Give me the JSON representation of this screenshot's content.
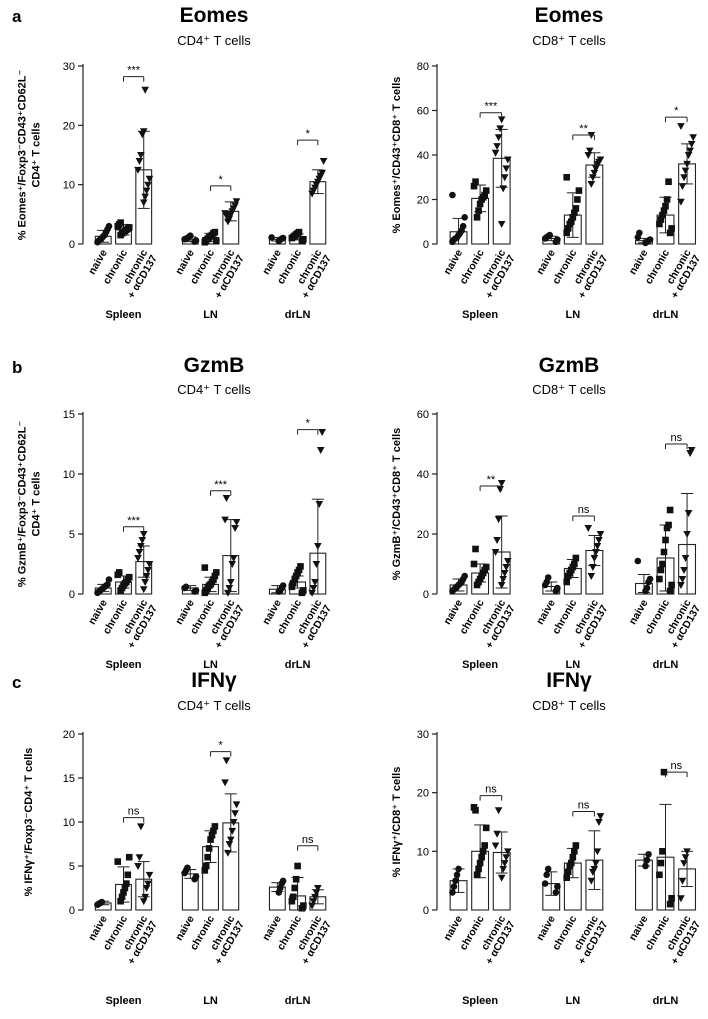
{
  "figure": {
    "panel_letters": [
      "a",
      "b",
      "c"
    ],
    "category_labels": [
      "naive",
      "chronic",
      "chronic\n+ αCD137"
    ],
    "group_labels": [
      "Spleen",
      "LN",
      "drLN"
    ]
  },
  "chart_data": [
    {
      "type": "bar",
      "title": "Eomes",
      "subtitle": "CD4⁺ T cells",
      "ylabel": "% Eomes⁺/Foxp3⁻CD43⁺CD62L⁻\nCD4⁺ T cells",
      "ylim": [
        0,
        30
      ],
      "yticks": [
        0,
        10,
        20,
        30
      ],
      "groups": [
        "Spleen",
        "LN",
        "drLN"
      ],
      "categories": [
        "naive",
        "chronic",
        "chronic + αCD137"
      ],
      "series": [
        {
          "group": "Spleen",
          "means": [
            1.3,
            2.4,
            12.5
          ],
          "sd": [
            1.0,
            0.9,
            6.5
          ],
          "points": [
            [
              0.3,
              0.6,
              0.8,
              1.0,
              1.3,
              1.5,
              2.0,
              2.5,
              3.0
            ],
            [
              1.5,
              1.8,
              2.0,
              2.2,
              2.4,
              2.6,
              2.8,
              3.0,
              3.3,
              3.6
            ],
            [
              7.0,
              8.0,
              9.0,
              10.0,
              11.0,
              12.5,
              14.0,
              15.0,
              18.5,
              19.0,
              26.0
            ]
          ]
        },
        {
          "group": "LN",
          "means": [
            0.8,
            1.1,
            5.5
          ],
          "sd": [
            0.4,
            0.7,
            1.6
          ],
          "points": [
            [
              0.4,
              0.6,
              0.8,
              0.9,
              1.0,
              1.2,
              1.4
            ],
            [
              0.3,
              0.6,
              0.9,
              1.1,
              1.3,
              1.5,
              1.8,
              2.0,
              0.5
            ],
            [
              3.8,
              4.3,
              5.0,
              5.5,
              6.0,
              6.5,
              7.2,
              5.2,
              4.8
            ]
          ]
        },
        {
          "group": "drLN",
          "means": [
            0.8,
            1.2,
            10.5
          ],
          "sd": [
            0.3,
            0.5,
            2.0
          ],
          "points": [
            [
              0.5,
              0.7,
              0.9,
              1.0,
              1.1
            ],
            [
              0.5,
              0.8,
              1.0,
              1.2,
              1.4,
              1.6,
              1.8,
              2.0
            ],
            [
              8.5,
              9.0,
              9.5,
              10.0,
              10.5,
              11.0,
              11.5,
              12.0,
              14.0
            ]
          ]
        }
      ],
      "significance": [
        {
          "group": "Spleen",
          "from": 1,
          "to": 2,
          "y": 28.2,
          "label": "***"
        },
        {
          "group": "LN",
          "from": 1,
          "to": 2,
          "y": 9.8,
          "label": "*"
        },
        {
          "group": "drLN",
          "from": 1,
          "to": 2,
          "y": 17.5,
          "label": "*"
        }
      ]
    },
    {
      "type": "bar",
      "title": "Eomes",
      "subtitle": "CD8⁺ T cells",
      "ylabel": "% Eomes⁺/CD43⁺CD8⁺ T cells",
      "ylim": [
        0,
        80
      ],
      "yticks": [
        0,
        20,
        40,
        60,
        80
      ],
      "groups": [
        "Spleen",
        "LN",
        "drLN"
      ],
      "categories": [
        "naive",
        "chronic",
        "chronic + αCD137"
      ],
      "series": [
        {
          "group": "Spleen",
          "means": [
            5.5,
            20.5,
            38.5
          ],
          "sd": [
            6.0,
            6.0,
            13.0
          ],
          "points": [
            [
              1.0,
              2.0,
              2.5,
              3.0,
              4.0,
              5.0,
              6.0,
              8.0,
              12.0,
              22.0
            ],
            [
              12.0,
              15.0,
              18.0,
              20.0,
              21.0,
              22.0,
              24.0,
              26.0,
              28.0
            ],
            [
              9.0,
              25.0,
              30.0,
              34.0,
              38.0,
              41.0,
              44.0,
              48.0,
              52.0,
              56.0
            ]
          ]
        },
        {
          "group": "LN",
          "means": [
            2.5,
            13.0,
            35.5
          ],
          "sd": [
            1.0,
            10.0,
            5.5
          ],
          "points": [
            [
              1.0,
              2.0,
              2.5,
              3.0,
              3.5,
              4.0
            ],
            [
              5.0,
              7.0,
              9.0,
              10.0,
              12.0,
              14.0,
              16.0,
              20.0,
              24.0,
              30.0
            ],
            [
              27.0,
              30.0,
              32.0,
              34.0,
              36.0,
              37.0,
              38.0,
              40.0,
              42.0,
              49.0
            ]
          ]
        },
        {
          "group": "drLN",
          "means": [
            1.5,
            13.0,
            36.0
          ],
          "sd": [
            1.0,
            8.0,
            9.0
          ],
          "points": [
            [
              0.5,
              1.0,
              1.5,
              2.0,
              3.0,
              5.0
            ],
            [
              5.0,
              7.0,
              9.0,
              11.0,
              13.0,
              15.0,
              17.0,
              20.0,
              28.0
            ],
            [
              19.0,
              26.0,
              30.0,
              33.0,
              36.0,
              40.0,
              42.0,
              45.0,
              48.0,
              53.0
            ]
          ]
        }
      ],
      "significance": [
        {
          "group": "Spleen",
          "from": 1,
          "to": 2,
          "y": 59.0,
          "label": "***"
        },
        {
          "group": "LN",
          "from": 1,
          "to": 2,
          "y": 49.0,
          "label": "**"
        },
        {
          "group": "drLN",
          "from": 1,
          "to": 2,
          "y": 57.0,
          "label": "*"
        }
      ]
    },
    {
      "type": "bar",
      "title": "GzmB",
      "subtitle": "CD4⁺ T cells",
      "ylabel": "% GzmB⁺/Foxp3⁻CD43⁺CD62L⁻\nCD4⁺ T cells",
      "ylim": [
        0,
        15
      ],
      "yticks": [
        0,
        5,
        10,
        15
      ],
      "groups": [
        "Spleen",
        "LN",
        "drLN"
      ],
      "categories": [
        "naive",
        "chronic",
        "chronic + αCD137"
      ],
      "series": [
        {
          "group": "Spleen",
          "means": [
            0.5,
            1.0,
            2.7
          ],
          "sd": [
            0.3,
            0.5,
            1.3
          ],
          "points": [
            [
              0.1,
              0.2,
              0.3,
              0.4,
              0.5,
              0.6,
              0.7,
              0.8,
              1.2
            ],
            [
              0.3,
              0.5,
              0.7,
              0.9,
              1.0,
              1.2,
              1.4,
              1.6,
              1.8
            ],
            [
              0.4,
              1.0,
              1.5,
              2.0,
              2.5,
              3.0,
              3.5,
              4.0,
              4.5,
              5.0
            ]
          ]
        },
        {
          "group": "LN",
          "means": [
            0.5,
            0.8,
            3.2
          ],
          "sd": [
            0.2,
            0.6,
            3.0
          ],
          "points": [
            [
              0.2,
              0.3,
              0.5,
              0.6
            ],
            [
              0.1,
              0.3,
              0.5,
              0.7,
              0.8,
              1.0,
              1.2,
              1.5,
              1.8,
              2.2
            ],
            [
              0.1,
              0.5,
              1.0,
              2.5,
              3.0,
              5.5,
              6.0,
              6.2,
              8.0
            ]
          ]
        },
        {
          "group": "drLN",
          "means": [
            0.4,
            1.0,
            3.4
          ],
          "sd": [
            0.3,
            0.5,
            4.5
          ],
          "points": [
            [
              0.2,
              0.3,
              0.5,
              0.7
            ],
            [
              0.1,
              0.3,
              0.6,
              0.9,
              1.2,
              1.5,
              1.8,
              2.0,
              2.3
            ],
            [
              0.1,
              0.5,
              1.0,
              2.5,
              4.0,
              7.5,
              12.0,
              13.5
            ]
          ]
        }
      ],
      "significance": [
        {
          "group": "Spleen",
          "from": 1,
          "to": 2,
          "y": 5.6,
          "label": "***"
        },
        {
          "group": "LN",
          "from": 1,
          "to": 2,
          "y": 8.6,
          "label": "***"
        },
        {
          "group": "drLN",
          "from": 1,
          "to": 2,
          "y": 13.7,
          "label": "*"
        }
      ]
    },
    {
      "type": "bar",
      "title": "GzmB",
      "subtitle": "CD8⁺ T cells",
      "ylabel": "% GzmB⁺/CD43⁺CD8⁺ T cells",
      "ylim": [
        0,
        60
      ],
      "yticks": [
        0,
        20,
        40,
        60
      ],
      "groups": [
        "Spleen",
        "LN",
        "drLN"
      ],
      "categories": [
        "naive",
        "chronic",
        "chronic + αCD137"
      ],
      "series": [
        {
          "group": "Spleen",
          "means": [
            3.0,
            7.0,
            14.0
          ],
          "sd": [
            2.0,
            3.0,
            12.0
          ],
          "points": [
            [
              1.0,
              1.5,
              2.0,
              2.5,
              3.0,
              3.5,
              4.0,
              5.0,
              6.0
            ],
            [
              3.0,
              4.0,
              5.0,
              6.0,
              7.0,
              8.0,
              9.0,
              10.0,
              15.0
            ],
            [
              3.0,
              5.0,
              7.0,
              9.0,
              11.0,
              14.0,
              18.0,
              25.0,
              35.0,
              37.0
            ]
          ]
        },
        {
          "group": "LN",
          "means": [
            2.5,
            8.5,
            14.5
          ],
          "sd": [
            1.5,
            3.0,
            5.0
          ],
          "points": [
            [
              1.0,
              2.0,
              3.0,
              4.0,
              5.5
            ],
            [
              4.0,
              6.0,
              7.0,
              8.0,
              9.0,
              10.0,
              12.0
            ],
            [
              6.0,
              9.0,
              12.0,
              14.0,
              16.0,
              18.0,
              20.0,
              22.0
            ]
          ]
        },
        {
          "group": "drLN",
          "means": [
            3.5,
            12.0,
            16.5
          ],
          "sd": [
            3.0,
            11.0,
            17.0
          ],
          "points": [
            [
              1.0,
              2.0,
              4.0,
              5.0,
              11.0
            ],
            [
              1.0,
              3.0,
              5.0,
              8.0,
              10.0,
              14.0,
              18.0,
              22.0,
              23.0,
              28.0
            ],
            [
              3.0,
              5.0,
              8.0,
              12.0,
              20.0,
              27.0,
              47.0,
              48.0
            ]
          ]
        }
      ],
      "significance": [
        {
          "group": "Spleen",
          "from": 1,
          "to": 2,
          "y": 36.0,
          "label": "**"
        },
        {
          "group": "LN",
          "from": 1,
          "to": 2,
          "y": 26.0,
          "label": "ns"
        },
        {
          "group": "drLN",
          "from": 1,
          "to": 2,
          "y": 50.0,
          "label": "ns"
        }
      ]
    },
    {
      "type": "bar",
      "title": "IFNγ",
      "subtitle": "CD4⁺ T cells",
      "ylabel": "% IFNγ⁺/Foxp3⁻CD4⁺ T cells",
      "ylim": [
        0,
        20
      ],
      "yticks": [
        0,
        5,
        10,
        15,
        20
      ],
      "groups": [
        "Spleen",
        "LN",
        "drLN"
      ],
      "categories": [
        "naive",
        "chronic",
        "chronic + αCD137"
      ],
      "series": [
        {
          "group": "Spleen",
          "means": [
            0.8,
            2.9,
            3.5
          ],
          "sd": [
            0.2,
            2.0,
            2.0
          ],
          "points": [
            [
              0.6,
              0.7,
              0.8,
              0.9
            ],
            [
              1.0,
              1.5,
              2.0,
              2.5,
              3.0,
              4.0,
              6.0,
              5.5
            ],
            [
              1.0,
              1.5,
              2.5,
              3.0,
              4.0,
              5.0,
              6.0,
              9.5
            ]
          ]
        },
        {
          "group": "LN",
          "means": [
            4.1,
            7.2,
            9.9
          ],
          "sd": [
            0.5,
            1.8,
            3.3
          ],
          "points": [
            [
              3.5,
              3.8,
              4.2,
              4.5,
              4.8
            ],
            [
              4.5,
              5.0,
              6.0,
              7.0,
              8.0,
              8.5,
              9.0,
              9.5
            ],
            [
              6.5,
              7.5,
              8.0,
              9.0,
              10.0,
              11.0,
              12.0,
              14.5,
              17.0
            ]
          ]
        },
        {
          "group": "drLN",
          "means": [
            2.6,
            1.6,
            1.5
          ],
          "sd": [
            0.5,
            2.1,
            0.8
          ],
          "points": [
            [
              2.0,
              2.5,
              3.0,
              3.3
            ],
            [
              0.2,
              0.5,
              1.0,
              1.5,
              2.5,
              3.5,
              5.0
            ],
            [
              0.5,
              1.0,
              1.5,
              2.0,
              2.5
            ]
          ]
        }
      ],
      "significance": [
        {
          "group": "Spleen",
          "from": 1,
          "to": 2,
          "y": 10.5,
          "label": "ns"
        },
        {
          "group": "LN",
          "from": 1,
          "to": 2,
          "y": 18.0,
          "label": "*"
        },
        {
          "group": "drLN",
          "from": 1,
          "to": 2,
          "y": 7.3,
          "label": "ns"
        }
      ]
    },
    {
      "type": "bar",
      "title": "IFNγ",
      "subtitle": "CD8⁺ T cells",
      "ylabel": "% IFNγ⁺/CD8⁺ T cells",
      "ylim": [
        0,
        30
      ],
      "yticks": [
        0,
        10,
        20,
        30
      ],
      "groups": [
        "Spleen",
        "LN",
        "drLN"
      ],
      "categories": [
        "naive",
        "chronic",
        "chronic + αCD137"
      ],
      "series": [
        {
          "group": "Spleen",
          "means": [
            5.0,
            10.0,
            9.8
          ],
          "sd": [
            2.0,
            4.5,
            3.5
          ],
          "points": [
            [
              3.0,
              4.0,
              5.0,
              6.0,
              7.0
            ],
            [
              6.0,
              7.0,
              8.0,
              9.0,
              10.0,
              11.0,
              14.0,
              17.5,
              17.0
            ],
            [
              5.5,
              7.0,
              8.0,
              9.0,
              10.0,
              11.0,
              13.0,
              17.0
            ]
          ]
        },
        {
          "group": "LN",
          "means": [
            4.5,
            8.0,
            8.5
          ],
          "sd": [
            2.0,
            2.5,
            5.0
          ],
          "points": [
            [
              3.0,
              4.0,
              4.5,
              6.0,
              7.0
            ],
            [
              5.5,
              6.5,
              7.5,
              8.0,
              9.0,
              10.0,
              11.0
            ],
            [
              5.0,
              6.5,
              7.0,
              8.0,
              10.0,
              15.0,
              16.0
            ]
          ]
        },
        {
          "group": "drLN",
          "means": [
            8.5,
            9.0,
            7.0
          ],
          "sd": [
            1.0,
            9.0,
            3.0
          ],
          "points": [
            [
              7.5,
              8.5,
              9.5
            ],
            [
              1.0,
              2.0,
              6.0,
              8.0,
              10.0,
              23.5
            ],
            [
              2.0,
              5.0,
              8.0,
              9.0,
              10.0
            ]
          ]
        }
      ],
      "significance": [
        {
          "group": "Spleen",
          "from": 1,
          "to": 2,
          "y": 19.5,
          "label": "ns"
        },
        {
          "group": "LN",
          "from": 1,
          "to": 2,
          "y": 16.8,
          "label": "ns"
        },
        {
          "group": "drLN",
          "from": 1,
          "to": 2,
          "y": 23.5,
          "label": "ns"
        }
      ]
    }
  ]
}
